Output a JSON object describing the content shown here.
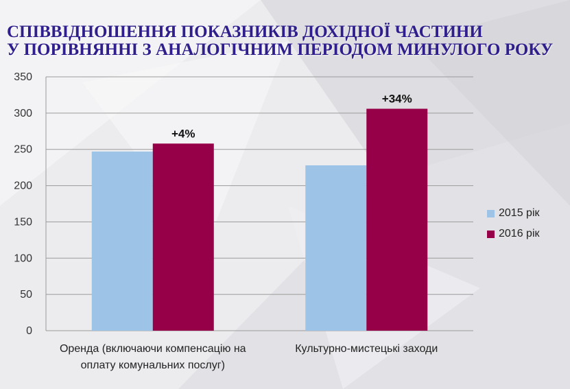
{
  "title": {
    "line1": "СПІВВІДНОШЕННЯ ПОКАЗНИКІВ ДОХІДНОЇ ЧАСТИНИ",
    "line2": "У ПОРІВНЯННІ З АНАЛОГІЧНИМ ПЕРІОДОМ МИНУЛОГО РОКУ"
  },
  "colors": {
    "title": "#2e1f8c",
    "series_2015": "#9dc3e6",
    "series_2016": "#960048",
    "grid": "#9a9a9a"
  },
  "chart_data": {
    "type": "bar",
    "categories": [
      [
        "Оренда (включаючи компенсацію на",
        "оплату комунальних послуг)"
      ],
      [
        "Культурно-мистецькі заходи"
      ]
    ],
    "series": [
      {
        "name": "2015 рік",
        "values": [
          247,
          228
        ],
        "color": "#9dc3e6"
      },
      {
        "name": "2016 рік",
        "values": [
          258,
          306
        ],
        "color": "#960048"
      }
    ],
    "data_labels": [
      "+4%",
      "+34%"
    ],
    "ylim": [
      0,
      350
    ],
    "yticks": [
      0,
      50,
      100,
      150,
      200,
      250,
      300,
      350
    ],
    "grid": true,
    "legend_position": "right"
  }
}
